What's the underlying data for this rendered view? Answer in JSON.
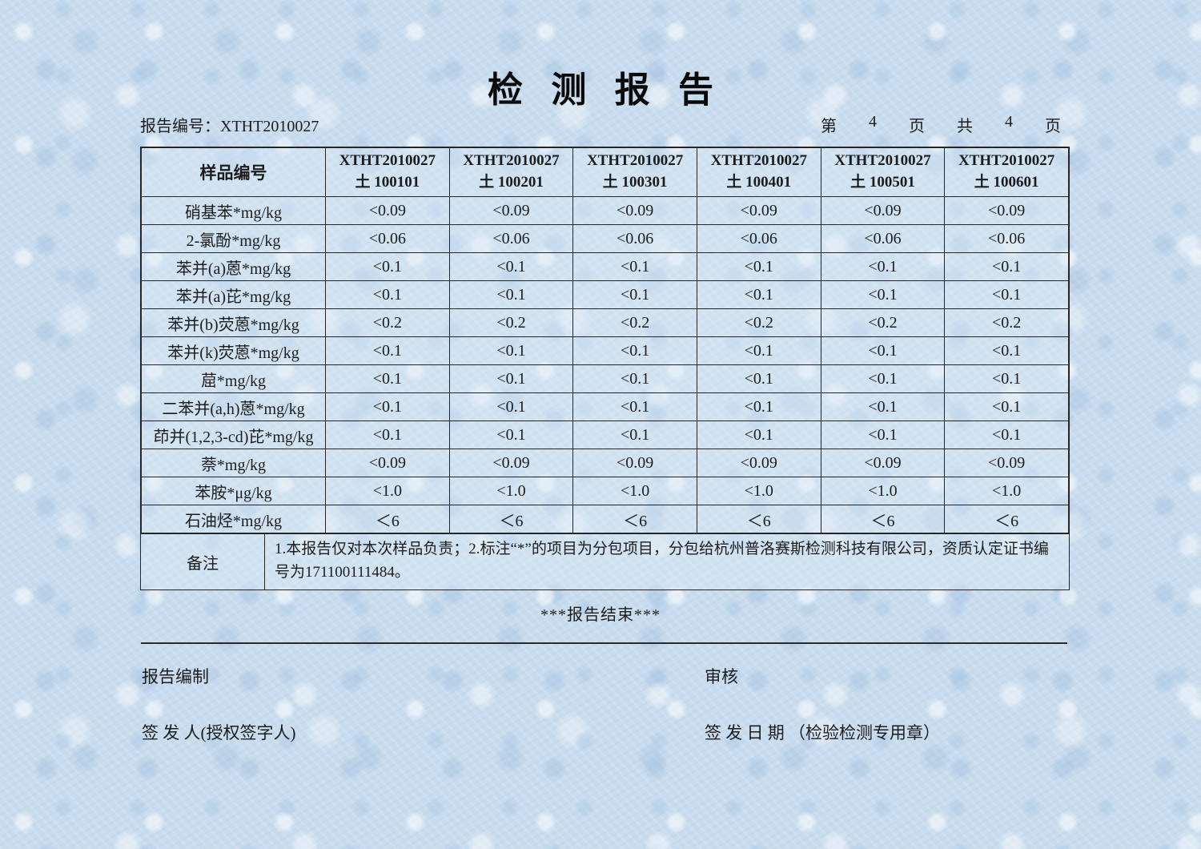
{
  "header": {
    "title": "检 测 报 告",
    "report_number_label": "报告编号：",
    "report_number_value": "XTHT2010027",
    "page_info": [
      "第",
      "4",
      "页",
      "共",
      "4",
      "页"
    ]
  },
  "table": {
    "corner_label": "样品编号",
    "columns": [
      {
        "code": "XTHT2010027",
        "sample": "土 100101"
      },
      {
        "code": "XTHT2010027",
        "sample": "土 100201"
      },
      {
        "code": "XTHT2010027",
        "sample": "土 100301"
      },
      {
        "code": "XTHT2010027",
        "sample": "土 100401"
      },
      {
        "code": "XTHT2010027",
        "sample": "土 100501"
      },
      {
        "code": "XTHT2010027",
        "sample": "土 100601"
      }
    ],
    "rows": [
      {
        "label": "硝基苯*mg/kg",
        "values": [
          "<0.09",
          "<0.09",
          "<0.09",
          "<0.09",
          "<0.09",
          "<0.09"
        ]
      },
      {
        "label": "2-氯酚*mg/kg",
        "values": [
          "<0.06",
          "<0.06",
          "<0.06",
          "<0.06",
          "<0.06",
          "<0.06"
        ]
      },
      {
        "label": "苯并(a)蒽*mg/kg",
        "values": [
          "<0.1",
          "<0.1",
          "<0.1",
          "<0.1",
          "<0.1",
          "<0.1"
        ]
      },
      {
        "label": "苯并(a)芘*mg/kg",
        "values": [
          "<0.1",
          "<0.1",
          "<0.1",
          "<0.1",
          "<0.1",
          "<0.1"
        ]
      },
      {
        "label": "苯并(b)荧蒽*mg/kg",
        "values": [
          "<0.2",
          "<0.2",
          "<0.2",
          "<0.2",
          "<0.2",
          "<0.2"
        ]
      },
      {
        "label": "苯并(k)荧蒽*mg/kg",
        "values": [
          "<0.1",
          "<0.1",
          "<0.1",
          "<0.1",
          "<0.1",
          "<0.1"
        ]
      },
      {
        "label": "䓛*mg/kg",
        "values": [
          "<0.1",
          "<0.1",
          "<0.1",
          "<0.1",
          "<0.1",
          "<0.1"
        ]
      },
      {
        "label": "二苯并(a,h)蒽*mg/kg",
        "values": [
          "<0.1",
          "<0.1",
          "<0.1",
          "<0.1",
          "<0.1",
          "<0.1"
        ]
      },
      {
        "label": "茚并(1,2,3-cd)芘*mg/kg",
        "values": [
          "<0.1",
          "<0.1",
          "<0.1",
          "<0.1",
          "<0.1",
          "<0.1"
        ]
      },
      {
        "label": "萘*mg/kg",
        "values": [
          "<0.09",
          "<0.09",
          "<0.09",
          "<0.09",
          "<0.09",
          "<0.09"
        ]
      },
      {
        "label": "苯胺*μg/kg",
        "values": [
          "<1.0",
          "<1.0",
          "<1.0",
          "<1.0",
          "<1.0",
          "<1.0"
        ]
      },
      {
        "label": "石油烃*mg/kg",
        "values": [
          "＜6",
          "＜6",
          "＜6",
          "＜6",
          "＜6",
          "＜6"
        ]
      }
    ],
    "remark_label": "备注",
    "remark_text": "1.本报告仅对本次样品负责；2.标注“*”的项目为分包项目，分包给杭州普洛赛斯检测科技有限公司，资质认定证书编号为171100111484。"
  },
  "footer": {
    "end_text": "***报告结束***",
    "prepared_label": "报告编制",
    "review_label": "审核",
    "signer_label": "签 发 人(授权签字人)",
    "issue_date_label": "签 发 日 期 （检验检测专用章）"
  },
  "colors": {
    "paper_blue": "#c9dcee",
    "ink": "#1c1c1c",
    "border": "#262626"
  }
}
